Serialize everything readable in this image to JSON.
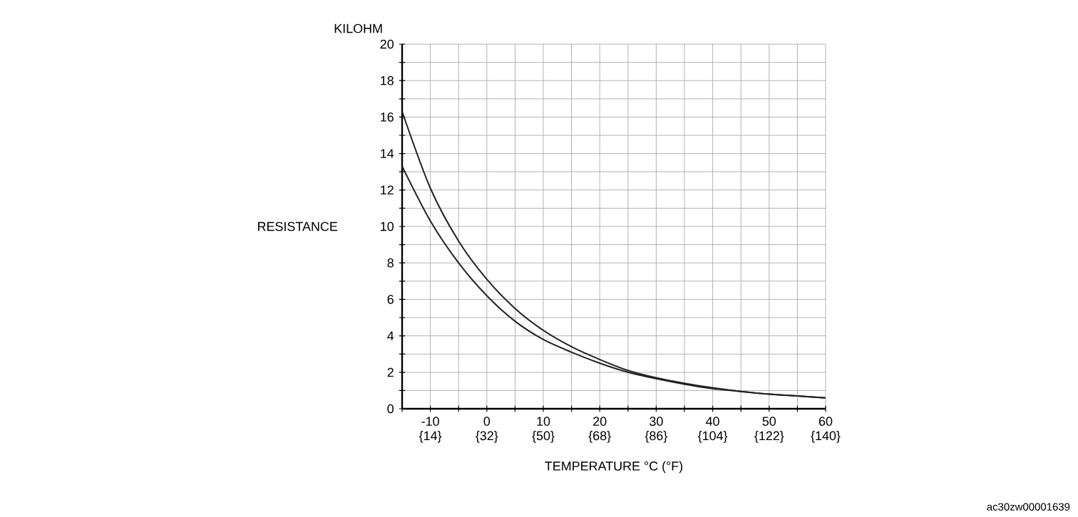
{
  "chart_data": {
    "type": "line",
    "xlabel": "TEMPERATURE    °C (°F)",
    "ylabel": "RESISTANCE",
    "annotations": [
      "KILOHM",
      "ac30zw00001639"
    ],
    "x": [
      -15,
      -10,
      -5,
      0,
      5,
      10,
      15,
      20,
      25,
      30,
      35,
      40,
      45,
      50,
      55,
      60
    ],
    "series": [
      {
        "color": "#222222",
        "values": [
          16.3,
          12.1,
          9.2,
          7.1,
          5.5,
          4.3,
          3.4,
          2.7,
          2.1,
          1.7,
          1.4,
          1.15,
          0.95,
          0.8,
          0.7,
          0.6
        ]
      },
      {
        "color": "#222222",
        "values": [
          13.3,
          10.3,
          8.0,
          6.2,
          4.8,
          3.8,
          3.1,
          2.5,
          2.0,
          1.65,
          1.35,
          1.1,
          0.95,
          0.8,
          0.7,
          0.6
        ]
      }
    ],
    "xlim": [
      -15,
      60
    ],
    "xticks": [
      {
        "value": -15,
        "label": null
      },
      -10,
      {
        "value": -5,
        "label": null
      },
      0,
      {
        "value": 5,
        "label": null
      },
      10,
      {
        "value": 15,
        "label": null
      },
      20,
      {
        "value": 25,
        "label": null
      },
      30,
      {
        "value": 35,
        "label": null
      },
      40,
      {
        "value": 45,
        "label": null
      },
      50,
      {
        "value": 55,
        "label": null
      },
      60
    ],
    "x2lim": [
      5,
      140
    ],
    "x2ticks": [
      {
        "value": 14,
        "label": "{14}"
      },
      {
        "value": 32,
        "label": "{32}"
      },
      {
        "value": 50,
        "label": "{50}"
      },
      {
        "value": 68,
        "label": "{68}"
      },
      {
        "value": 86,
        "label": "{86}"
      },
      {
        "value": 104,
        "label": "{104}"
      },
      {
        "value": 122,
        "label": "{122}"
      },
      {
        "value": 140,
        "label": "{140}"
      }
    ],
    "ylim": [
      0,
      20
    ],
    "yticks": [
      0,
      {
        "value": 1,
        "label": null
      },
      2,
      {
        "value": 3,
        "label": null
      },
      4,
      {
        "value": 5,
        "label": null
      },
      6,
      {
        "value": 7,
        "label": null
      },
      8,
      {
        "value": 9,
        "label": null
      },
      10,
      {
        "value": 11,
        "label": null
      },
      12,
      {
        "value": 13,
        "label": null
      },
      14,
      {
        "value": 15,
        "label": null
      },
      16,
      {
        "value": 17,
        "label": null
      },
      18,
      {
        "value": 19,
        "label": null
      },
      20
    ],
    "grid": true,
    "marker": "none",
    "line_style": "solid"
  }
}
